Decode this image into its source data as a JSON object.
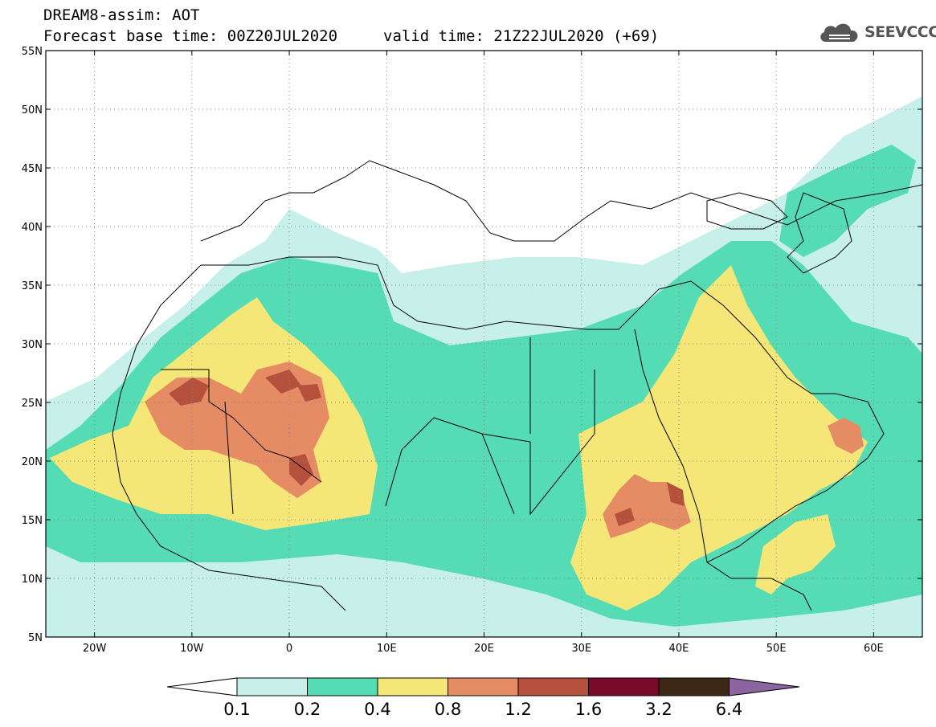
{
  "header": {
    "title_line1": "DREAM8-assim: AOT",
    "title_line2": "Forecast base time: 00Z20JUL2020",
    "valid_time": "valid time: 21Z22JUL2020 (+69)"
  },
  "logo": {
    "text": "SEEVCCC",
    "icon": "cloud-icon"
  },
  "map": {
    "lon_range": [
      -25,
      65
    ],
    "lat_range": [
      5,
      55
    ],
    "lat_ticks": [
      {
        "v": 55,
        "label": "55N"
      },
      {
        "v": 50,
        "label": "50N"
      },
      {
        "v": 45,
        "label": "45N"
      },
      {
        "v": 40,
        "label": "40N"
      },
      {
        "v": 35,
        "label": "35N"
      },
      {
        "v": 30,
        "label": "30N"
      },
      {
        "v": 25,
        "label": "25N"
      },
      {
        "v": 20,
        "label": "20N"
      },
      {
        "v": 15,
        "label": "15N"
      },
      {
        "v": 10,
        "label": "10N"
      },
      {
        "v": 5,
        "label": "5N"
      }
    ],
    "lon_ticks": [
      {
        "v": -20,
        "label": "20W"
      },
      {
        "v": -10,
        "label": "10W"
      },
      {
        "v": 0,
        "label": "0"
      },
      {
        "v": 10,
        "label": "10E"
      },
      {
        "v": 20,
        "label": "20E"
      },
      {
        "v": 30,
        "label": "30E"
      },
      {
        "v": 40,
        "label": "40E"
      },
      {
        "v": 50,
        "label": "50E"
      },
      {
        "v": 60,
        "label": "60E"
      }
    ]
  },
  "colorbar": {
    "colors": [
      "#c8f0ea",
      "#55dcb4",
      "#f5e678",
      "#e68c64",
      "#b4503c",
      "#7a0a2a",
      "#3c2814"
    ],
    "low_color": "#ffffff",
    "high_color": "#8c64a0",
    "labels": [
      "0.1",
      "0.2",
      "0.4",
      "0.8",
      "1.2",
      "1.6",
      "3.2",
      "6.4"
    ]
  }
}
